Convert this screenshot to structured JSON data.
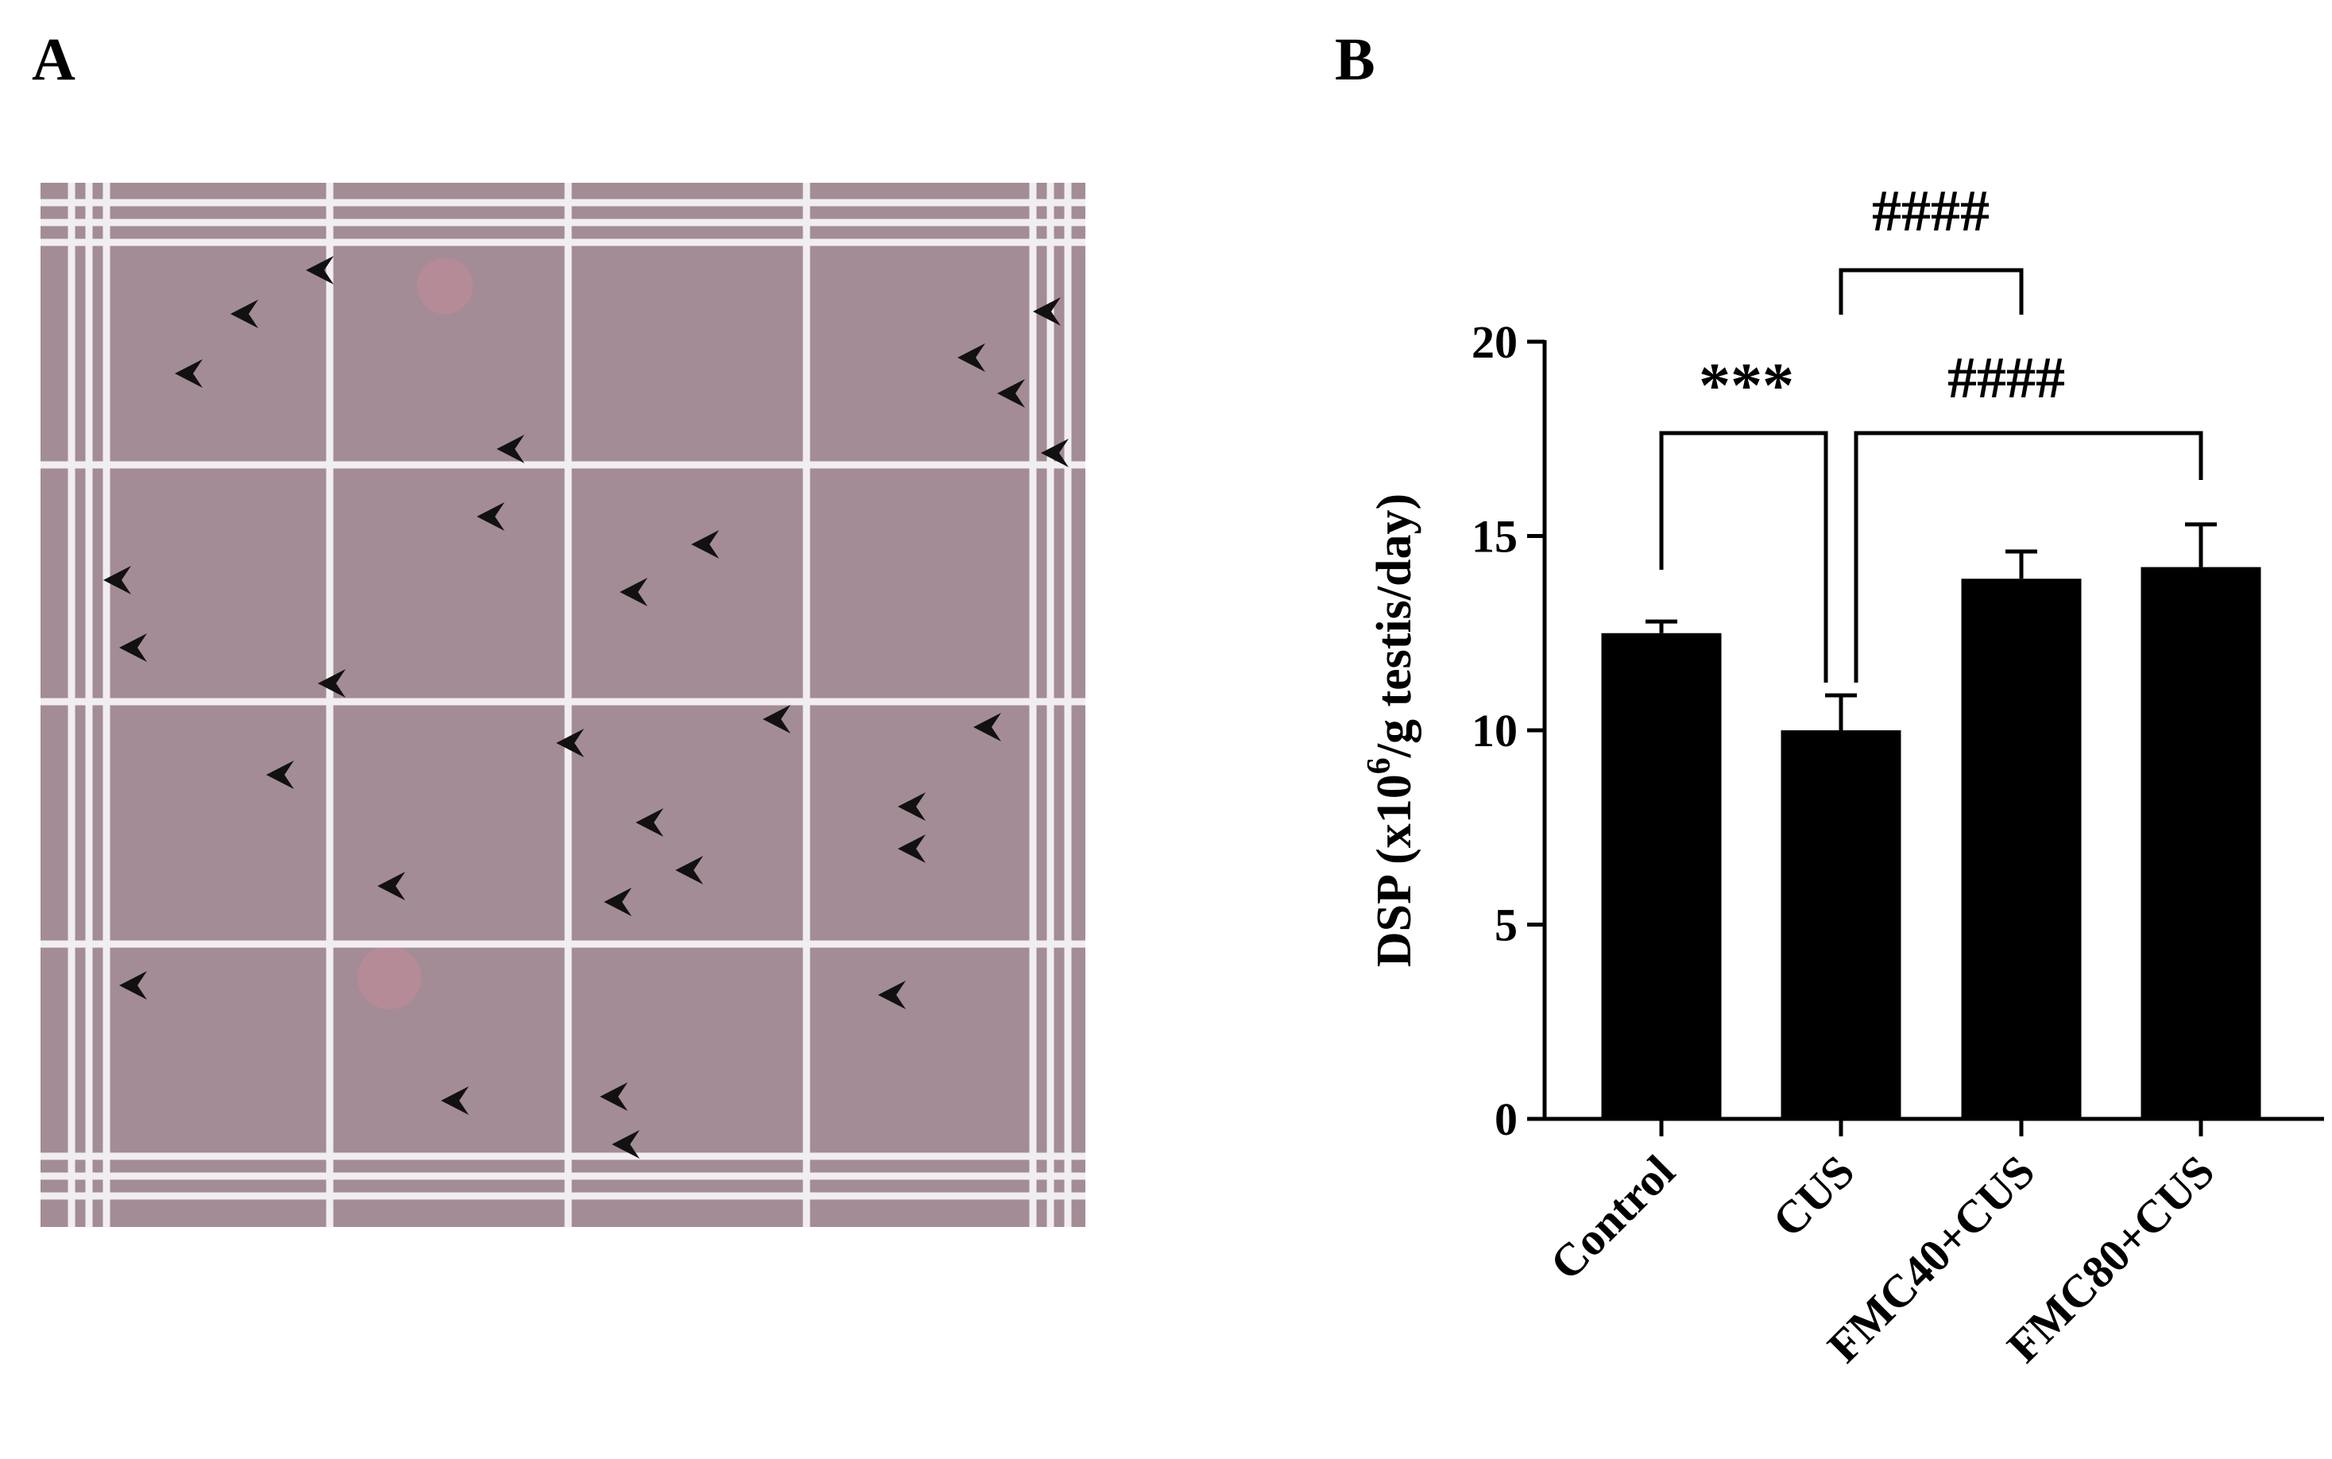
{
  "panel_labels": [
    "A",
    "B"
  ],
  "chart_data": {
    "type": "bar",
    "y_label": [
      "DSP (x10",
      "6",
      "/g testis/day)"
    ],
    "categories": [
      "Control",
      "CUS",
      "FMC40+CUS",
      "FMC80+CUS"
    ],
    "values": [
      12.5,
      10.0,
      13.9,
      14.2
    ],
    "errors": [
      0.3,
      0.9,
      0.7,
      1.1
    ],
    "color": "#000000",
    "ylim": [
      0,
      20
    ],
    "yticks": [
      0,
      5,
      10,
      15,
      20
    ],
    "annotations": [
      "***",
      "####",
      "####"
    ]
  }
}
